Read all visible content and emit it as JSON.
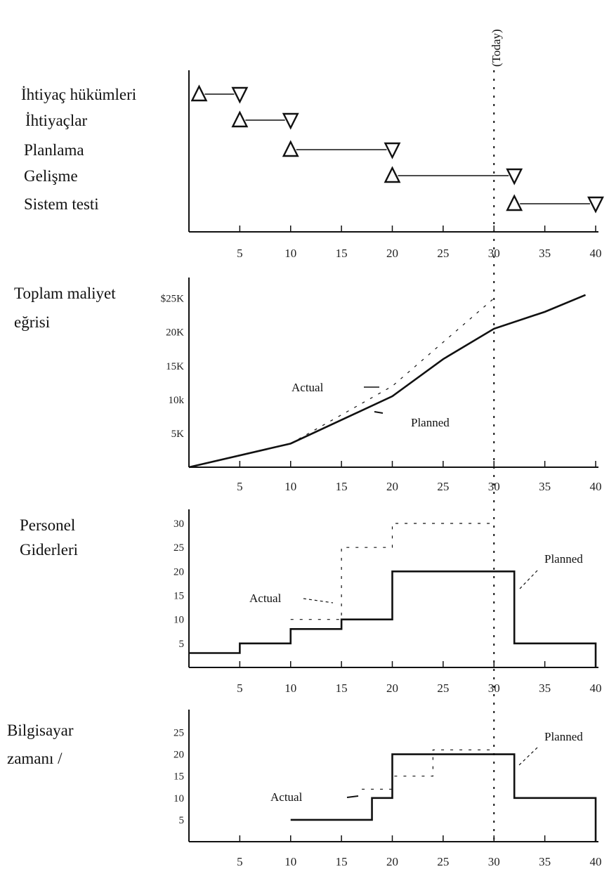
{
  "today_label": "(Today)",
  "chart_data": [
    {
      "type": "gantt",
      "x": [
        5,
        10,
        15,
        20,
        25,
        30,
        35,
        40
      ],
      "xlim": [
        0,
        40
      ],
      "tasks": [
        {
          "name": "İhtiyaç hükümleri",
          "start": 1,
          "end": 5
        },
        {
          "name": "İhtiyaçlar",
          "start": 5,
          "end": 10
        },
        {
          "name": "Planlama",
          "start": 10,
          "end": 20
        },
        {
          "name": "Gelişme",
          "start": 20,
          "end": 32
        },
        {
          "name": "Sistem testi",
          "start": 32,
          "end": 40
        }
      ],
      "today": 30
    },
    {
      "type": "line",
      "title": "Toplam maliyet eğrisi",
      "x_ticks": [
        5,
        10,
        15,
        20,
        25,
        30,
        35,
        40
      ],
      "xlim": [
        0,
        40
      ],
      "y_ticks": [
        "5K",
        "10k",
        "15K",
        "20K",
        "$25K"
      ],
      "ylim": [
        0,
        26
      ],
      "series": [
        {
          "name": "Planned",
          "x": [
            0,
            10,
            20,
            25,
            30,
            35,
            39
          ],
          "y": [
            0,
            3.5,
            10.5,
            16,
            20.5,
            23,
            25.5
          ],
          "dashed": false
        },
        {
          "name": "Actual",
          "x": [
            10,
            20,
            30
          ],
          "y": [
            3.5,
            12,
            25
          ],
          "dashed": true
        }
      ],
      "annotations": [
        "Actual",
        "Planned"
      ]
    },
    {
      "type": "step",
      "title": "Personel Giderleri",
      "x_ticks": [
        5,
        10,
        15,
        20,
        25,
        30,
        35,
        40
      ],
      "xlim": [
        0,
        40
      ],
      "y_ticks": [
        5,
        10,
        15,
        20,
        25,
        30
      ],
      "ylim": [
        0,
        32
      ],
      "series": [
        {
          "name": "Planned",
          "x": [
            0,
            5,
            10,
            15,
            20,
            32,
            40
          ],
          "y": [
            3,
            5,
            8,
            10,
            20,
            5,
            0
          ],
          "dashed": false
        },
        {
          "name": "Actual",
          "x": [
            10,
            15,
            20,
            30
          ],
          "y": [
            10,
            25,
            30,
            30
          ],
          "dashed": true
        }
      ],
      "annotations": [
        "Actual",
        "Planned"
      ]
    },
    {
      "type": "step",
      "title": "Bilgisayar zamanı /",
      "x_ticks": [
        5,
        10,
        15,
        20,
        25,
        30,
        35,
        40
      ],
      "xlim": [
        0,
        40
      ],
      "y_ticks": [
        5,
        10,
        15,
        20,
        25
      ],
      "ylim": [
        0,
        27
      ],
      "series": [
        {
          "name": "Planned",
          "x": [
            10,
            18,
            20,
            32,
            40
          ],
          "y": [
            5,
            10,
            20,
            10,
            0
          ],
          "dashed": false
        },
        {
          "name": "Actual",
          "x": [
            17,
            20,
            24,
            30
          ],
          "y": [
            12,
            15,
            21,
            21
          ],
          "dashed": true
        }
      ],
      "annotations": [
        "Actual",
        "Planned"
      ]
    }
  ]
}
